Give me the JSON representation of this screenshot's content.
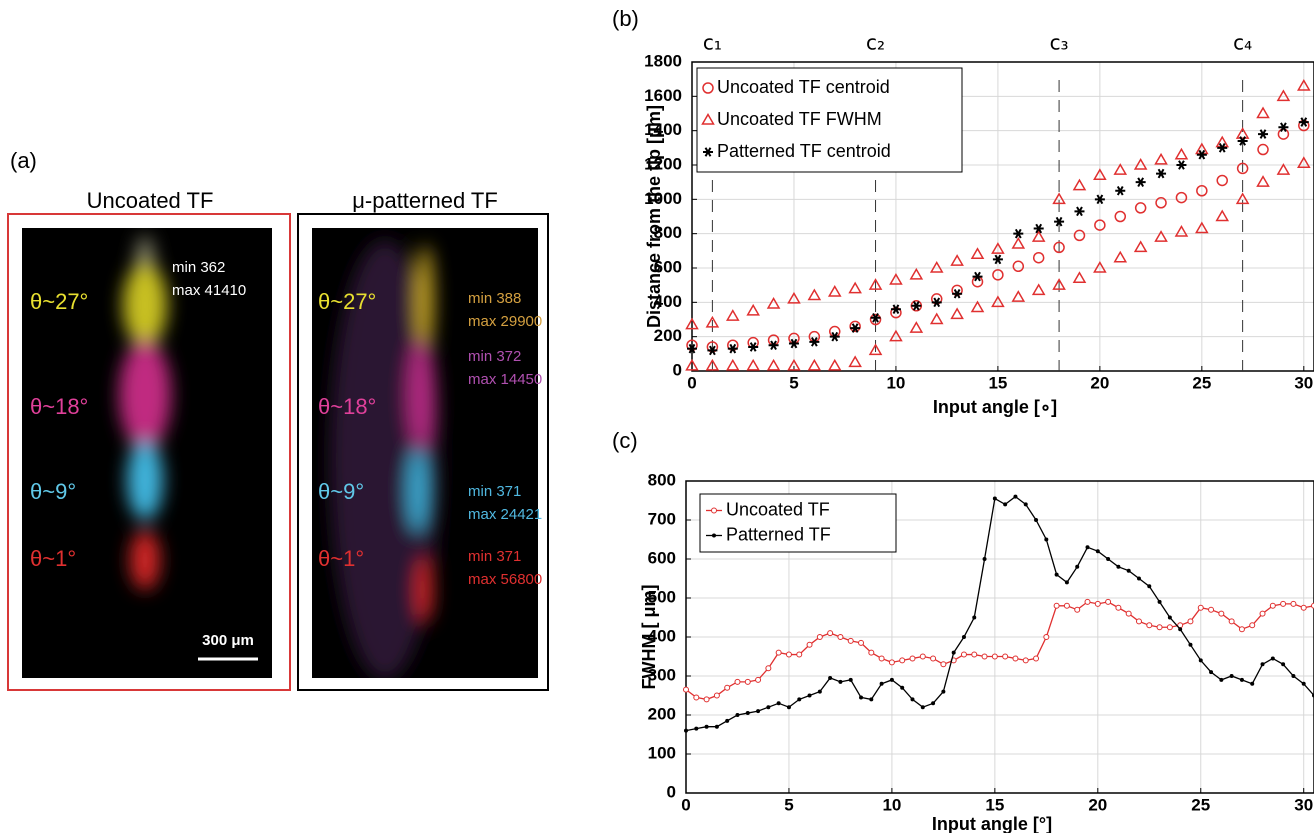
{
  "panel_a": {
    "label": "(a)",
    "images": [
      {
        "title": "Uncoated TF",
        "angles": [
          "θ~27°",
          "θ~18°",
          "θ~9°",
          "θ~1°"
        ],
        "stats": [
          [
            "min 362",
            "max 41410"
          ]
        ],
        "scale_bar": "300 μm"
      },
      {
        "title": "μ-patterned TF",
        "angles": [
          "θ~27°",
          "θ~18°",
          "θ~9°",
          "θ~1°"
        ],
        "stats": [
          [
            "min 388",
            "max 29900"
          ],
          [
            "min 372",
            "max 14450"
          ],
          [
            "min 371",
            "max 24421"
          ],
          [
            "min 371",
            "max 56800"
          ]
        ]
      }
    ]
  },
  "chart_data": [
    {
      "type": "scatter",
      "label": "(b)",
      "xlabel": "Input angle [∘]",
      "ylabel": "Distance from the tip [μm]",
      "x": [
        0,
        1,
        2,
        3,
        4,
        5,
        6,
        7,
        8,
        9,
        10,
        11,
        12,
        13,
        14,
        15,
        16,
        17,
        18,
        19,
        20,
        21,
        22,
        23,
        24,
        25,
        26,
        27,
        28,
        29,
        30
      ],
      "xlim": [
        0,
        30.5
      ],
      "ylim": [
        0,
        1800
      ],
      "xticks": [
        0,
        5,
        10,
        15,
        20,
        25,
        30
      ],
      "yticks": [
        0,
        200,
        400,
        600,
        800,
        1000,
        1200,
        1400,
        1600,
        1800
      ],
      "grid": true,
      "markers": [
        {
          "label": "c₁",
          "x": 1
        },
        {
          "label": "c₂",
          "x": 9
        },
        {
          "label": "c₃",
          "x": 18
        },
        {
          "label": "c₄",
          "x": 27
        }
      ],
      "series": [
        {
          "name": "Uncoated TF centroid",
          "color": "#e03030",
          "marker": "circle",
          "values": [
            150,
            140,
            150,
            165,
            180,
            190,
            200,
            230,
            260,
            300,
            340,
            380,
            420,
            470,
            520,
            560,
            610,
            660,
            720,
            790,
            850,
            900,
            950,
            980,
            1010,
            1050,
            1110,
            1180,
            1290,
            1380,
            1430
          ]
        },
        {
          "name": "Uncoated TF FWHM",
          "color": "#e03030",
          "marker": "triangle",
          "values": [
            270,
            280,
            320,
            350,
            390,
            420,
            440,
            460,
            480,
            500,
            530,
            560,
            600,
            640,
            680,
            710,
            740,
            780,
            1000,
            1080,
            1140,
            1170,
            1200,
            1230,
            1260,
            1290,
            1330,
            1380,
            1500,
            1600,
            1660
          ],
          "lower": [
            30,
            30,
            30,
            30,
            30,
            30,
            30,
            30,
            50,
            120,
            200,
            250,
            300,
            330,
            370,
            400,
            430,
            470,
            500,
            540,
            600,
            660,
            720,
            780,
            810,
            830,
            900,
            1000,
            1100,
            1170,
            1210
          ]
        },
        {
          "name": "Patterned TF centroid",
          "color": "#000000",
          "marker": "star",
          "values": [
            130,
            120,
            130,
            140,
            150,
            160,
            170,
            200,
            250,
            310,
            360,
            380,
            400,
            450,
            550,
            650,
            800,
            830,
            870,
            930,
            1000,
            1050,
            1100,
            1150,
            1200,
            1260,
            1300,
            1340,
            1380,
            1420,
            1450
          ]
        }
      ]
    },
    {
      "type": "line",
      "label": "(c)",
      "xlabel": "Input angle [°]",
      "ylabel": "FWHM [ μm]",
      "x": [
        0,
        0.5,
        1,
        1.5,
        2,
        2.5,
        3,
        3.5,
        4,
        4.5,
        5,
        5.5,
        6,
        6.5,
        7,
        7.5,
        8,
        8.5,
        9,
        9.5,
        10,
        10.5,
        11,
        11.5,
        12,
        12.5,
        13,
        13.5,
        14,
        14.5,
        15,
        15.5,
        16,
        16.5,
        17,
        17.5,
        18,
        18.5,
        19,
        19.5,
        20,
        20.5,
        21,
        21.5,
        22,
        22.5,
        23,
        23.5,
        24,
        24.5,
        25,
        25.5,
        26,
        26.5,
        27,
        27.5,
        28,
        28.5,
        29,
        29.5,
        30,
        30.5
      ],
      "xlim": [
        0,
        30.5
      ],
      "ylim": [
        0,
        800
      ],
      "xticks": [
        0,
        5,
        10,
        15,
        20,
        25,
        30
      ],
      "yticks": [
        0,
        100,
        200,
        300,
        400,
        500,
        600,
        700,
        800
      ],
      "grid": true,
      "series": [
        {
          "name": "Uncoated TF",
          "color": "#e03030",
          "marker": "circle",
          "values": [
            265,
            245,
            240,
            250,
            270,
            285,
            285,
            290,
            320,
            360,
            355,
            355,
            380,
            400,
            410,
            400,
            390,
            385,
            360,
            345,
            335,
            340,
            345,
            350,
            345,
            330,
            340,
            355,
            355,
            350,
            350,
            350,
            345,
            340,
            345,
            400,
            480,
            480,
            470,
            490,
            485,
            490,
            475,
            460,
            440,
            430,
            425,
            425,
            430,
            440,
            475,
            470,
            460,
            440,
            420,
            430,
            460,
            480,
            485,
            485,
            475,
            480
          ]
        },
        {
          "name": "Patterned TF",
          "color": "#000000",
          "marker": "dot",
          "values": [
            160,
            165,
            170,
            170,
            185,
            200,
            205,
            210,
            220,
            230,
            220,
            240,
            250,
            260,
            295,
            285,
            290,
            245,
            240,
            280,
            290,
            270,
            240,
            220,
            230,
            260,
            360,
            400,
            450,
            600,
            755,
            740,
            760,
            740,
            700,
            650,
            560,
            540,
            580,
            630,
            620,
            600,
            580,
            570,
            550,
            530,
            490,
            450,
            420,
            380,
            340,
            310,
            290,
            300,
            290,
            280,
            330,
            345,
            330,
            300,
            280,
            250
          ]
        }
      ]
    }
  ]
}
